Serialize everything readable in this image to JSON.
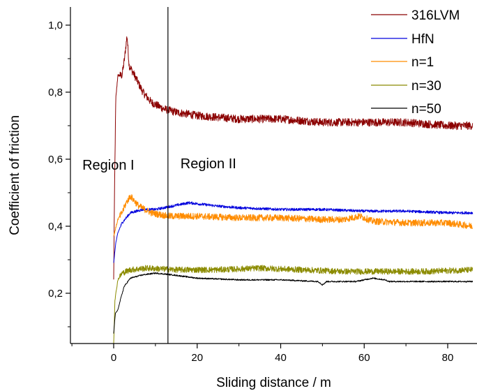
{
  "chart_data": {
    "type": "line",
    "title": "",
    "xlabel": "Sliding distance / m",
    "ylabel": "Coefficient of friction",
    "xlim": [
      -10.5,
      86
    ],
    "ylim": [
      0.05,
      1.05
    ],
    "x_ticks": [
      0,
      20,
      40,
      60,
      80
    ],
    "x_tick_labels": [
      "0",
      "20",
      "40",
      "60",
      "80"
    ],
    "y_ticks": [
      0.2,
      0.4,
      0.6,
      0.8,
      1.0
    ],
    "y_tick_labels": [
      "0,2",
      "0,4",
      "0,6",
      "0,8",
      "1,0"
    ],
    "grid": false,
    "legend_position": "top-right",
    "annotations": {
      "vline_x": 13,
      "region1": {
        "text": "Region I",
        "x": -7.5,
        "y": 0.6
      },
      "region2": {
        "text": "Region II",
        "x": 16,
        "y": 0.6
      }
    },
    "series": [
      {
        "name": "316LVM",
        "color": "#8b0000",
        "noise": 0.012,
        "points": [
          [
            0,
            0.24
          ],
          [
            0.2,
            0.5
          ],
          [
            0.5,
            0.78
          ],
          [
            1,
            0.85
          ],
          [
            2,
            0.85
          ],
          [
            2.6,
            0.9
          ],
          [
            3.2,
            0.97
          ],
          [
            3.7,
            0.88
          ],
          [
            5,
            0.85
          ],
          [
            7,
            0.8
          ],
          [
            9,
            0.77
          ],
          [
            12,
            0.75
          ],
          [
            15,
            0.74
          ],
          [
            20,
            0.73
          ],
          [
            30,
            0.72
          ],
          [
            40,
            0.72
          ],
          [
            50,
            0.71
          ],
          [
            60,
            0.71
          ],
          [
            70,
            0.71
          ],
          [
            80,
            0.7
          ],
          [
            86,
            0.7
          ]
        ]
      },
      {
        "name": "HfN",
        "color": "#0000dd",
        "noise": 0.004,
        "points": [
          [
            0,
            0.29
          ],
          [
            0.5,
            0.35
          ],
          [
            1,
            0.38
          ],
          [
            2,
            0.41
          ],
          [
            4,
            0.44
          ],
          [
            7,
            0.45
          ],
          [
            10,
            0.45
          ],
          [
            14,
            0.46
          ],
          [
            18,
            0.47
          ],
          [
            25,
            0.46
          ],
          [
            30,
            0.455
          ],
          [
            40,
            0.45
          ],
          [
            50,
            0.45
          ],
          [
            60,
            0.445
          ],
          [
            70,
            0.445
          ],
          [
            80,
            0.44
          ],
          [
            86,
            0.44
          ]
        ]
      },
      {
        "name": "n=1",
        "color": "#ff8c00",
        "noise": 0.01,
        "points": [
          [
            0,
            0.37
          ],
          [
            1,
            0.42
          ],
          [
            2,
            0.44
          ],
          [
            3,
            0.47
          ],
          [
            4,
            0.49
          ],
          [
            6,
            0.46
          ],
          [
            9,
            0.44
          ],
          [
            13,
            0.43
          ],
          [
            20,
            0.43
          ],
          [
            30,
            0.425
          ],
          [
            40,
            0.425
          ],
          [
            50,
            0.42
          ],
          [
            55,
            0.42
          ],
          [
            59,
            0.43
          ],
          [
            62,
            0.415
          ],
          [
            70,
            0.41
          ],
          [
            80,
            0.41
          ],
          [
            86,
            0.4
          ]
        ]
      },
      {
        "name": "n=30",
        "color": "#8b8b00",
        "noise": 0.009,
        "points": [
          [
            0,
            0.05
          ],
          [
            0.3,
            0.18
          ],
          [
            1,
            0.24
          ],
          [
            2,
            0.26
          ],
          [
            4,
            0.27
          ],
          [
            8,
            0.275
          ],
          [
            15,
            0.27
          ],
          [
            25,
            0.27
          ],
          [
            35,
            0.275
          ],
          [
            45,
            0.27
          ],
          [
            55,
            0.265
          ],
          [
            65,
            0.265
          ],
          [
            75,
            0.265
          ],
          [
            86,
            0.27
          ]
        ]
      },
      {
        "name": "n=50",
        "color": "#000000",
        "noise": 0.002,
        "points": [
          [
            0,
            0.08
          ],
          [
            0.4,
            0.14
          ],
          [
            1,
            0.15
          ],
          [
            1.6,
            0.18
          ],
          [
            2.5,
            0.22
          ],
          [
            4,
            0.245
          ],
          [
            7,
            0.255
          ],
          [
            10,
            0.26
          ],
          [
            14,
            0.255
          ],
          [
            20,
            0.245
          ],
          [
            30,
            0.24
          ],
          [
            40,
            0.24
          ],
          [
            49,
            0.235
          ],
          [
            50,
            0.225
          ],
          [
            51,
            0.235
          ],
          [
            58,
            0.235
          ],
          [
            62,
            0.245
          ],
          [
            65,
            0.24
          ],
          [
            66,
            0.235
          ],
          [
            75,
            0.235
          ],
          [
            86,
            0.235
          ]
        ]
      }
    ]
  }
}
